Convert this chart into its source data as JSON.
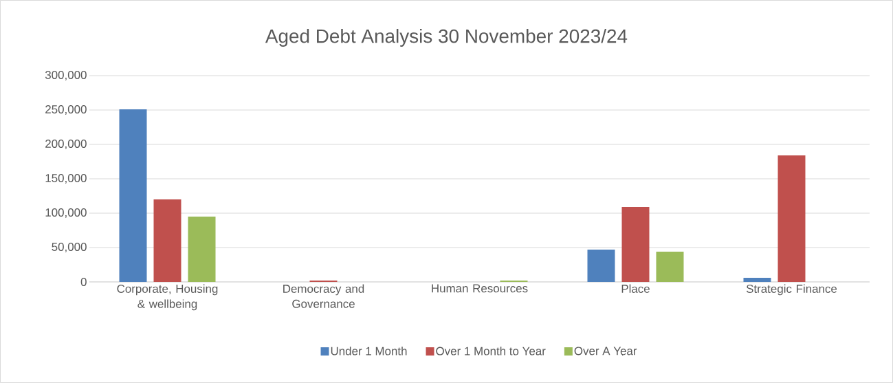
{
  "chart_data": {
    "type": "bar",
    "title": "Aged Debt Analysis 30 November 2023/24",
    "categories": [
      "Corporate, Housing & wellbeing",
      "Democracy and Governance",
      "Human Resources",
      "Place",
      "Strategic Finance"
    ],
    "series": [
      {
        "name": "Under 1 Month",
        "color": "#4f81bd",
        "values": [
          251000,
          0,
          0,
          47000,
          6000
        ]
      },
      {
        "name": "Over 1 Month to Year",
        "color": "#c0504d",
        "values": [
          120000,
          2000,
          0,
          109000,
          184000
        ]
      },
      {
        "name": "Over A Year",
        "color": "#9bbb59",
        "values": [
          95000,
          0,
          2000,
          44000,
          0
        ]
      }
    ],
    "ylim": [
      0,
      300000
    ],
    "yticks": [
      {
        "value": 0,
        "label": "0"
      },
      {
        "value": 50000,
        "label": "50,000"
      },
      {
        "value": 100000,
        "label": "100,000"
      },
      {
        "value": 150000,
        "label": "150,000"
      },
      {
        "value": 200000,
        "label": "200,000"
      },
      {
        "value": 250000,
        "label": "250,000"
      },
      {
        "value": 300000,
        "label": "300,000"
      }
    ],
    "grid": "y",
    "legend": "bottom"
  }
}
